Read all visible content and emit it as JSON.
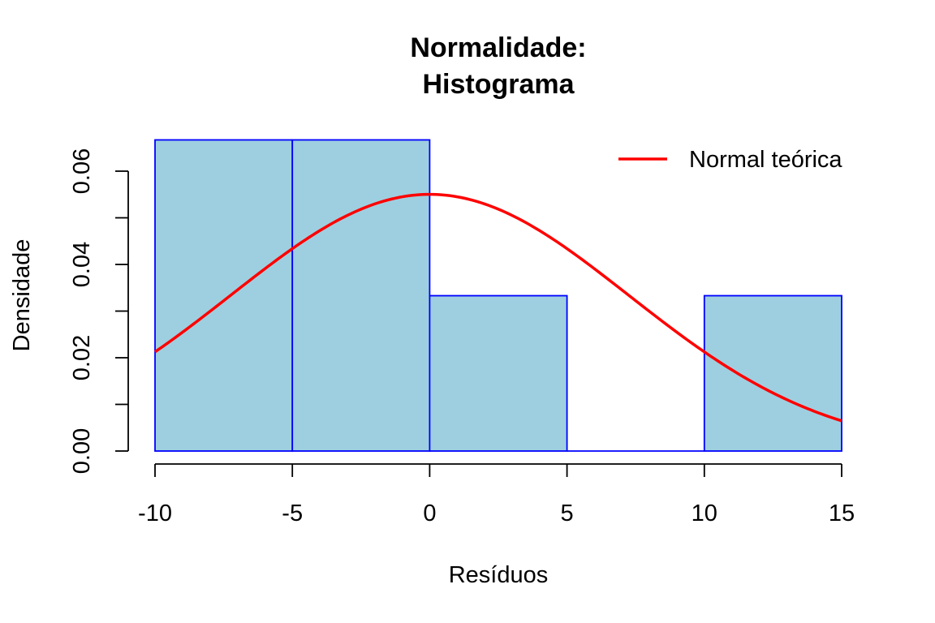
{
  "chart_data": {
    "type": "bar",
    "title": [
      "Normalidade:",
      "Histograma"
    ],
    "xlabel": "Resíduos",
    "ylabel": "Densidade",
    "xlim": [
      -10,
      15
    ],
    "ylim": [
      0,
      0.06
    ],
    "x_ticks": [
      -10,
      -5,
      0,
      5,
      10,
      15
    ],
    "x_tick_labels": [
      "-10",
      "-5",
      "0",
      "5",
      "10",
      "15"
    ],
    "y_ticks": [
      0,
      0.01,
      0.02,
      0.03,
      0.04,
      0.05,
      0.06
    ],
    "y_tick_labels": [
      "0.00",
      "0.02",
      "0.04",
      "0.06"
    ],
    "y_labeled_ticks": [
      0,
      0.02,
      0.04,
      0.06
    ],
    "bins": [
      {
        "x0": -10,
        "x1": -5,
        "density": 0.0667
      },
      {
        "x0": -5,
        "x1": 0,
        "density": 0.0667
      },
      {
        "x0": 0,
        "x1": 5,
        "density": 0.0333
      },
      {
        "x0": 5,
        "x1": 10,
        "density": 0
      },
      {
        "x0": 10,
        "x1": 15,
        "density": 0.0333
      }
    ],
    "normal_curve": {
      "mean": 0,
      "sd": 7.25,
      "name": "Normal teórica"
    },
    "legend": {
      "position": "top-right",
      "entries": [
        {
          "label": "Normal teórica",
          "color": "#ff0000"
        }
      ]
    },
    "colors": {
      "bar_fill": "#9ecfe0",
      "bar_border": "#0000ff",
      "curve": "#ff0000",
      "axis": "#000000"
    },
    "grid": false
  }
}
